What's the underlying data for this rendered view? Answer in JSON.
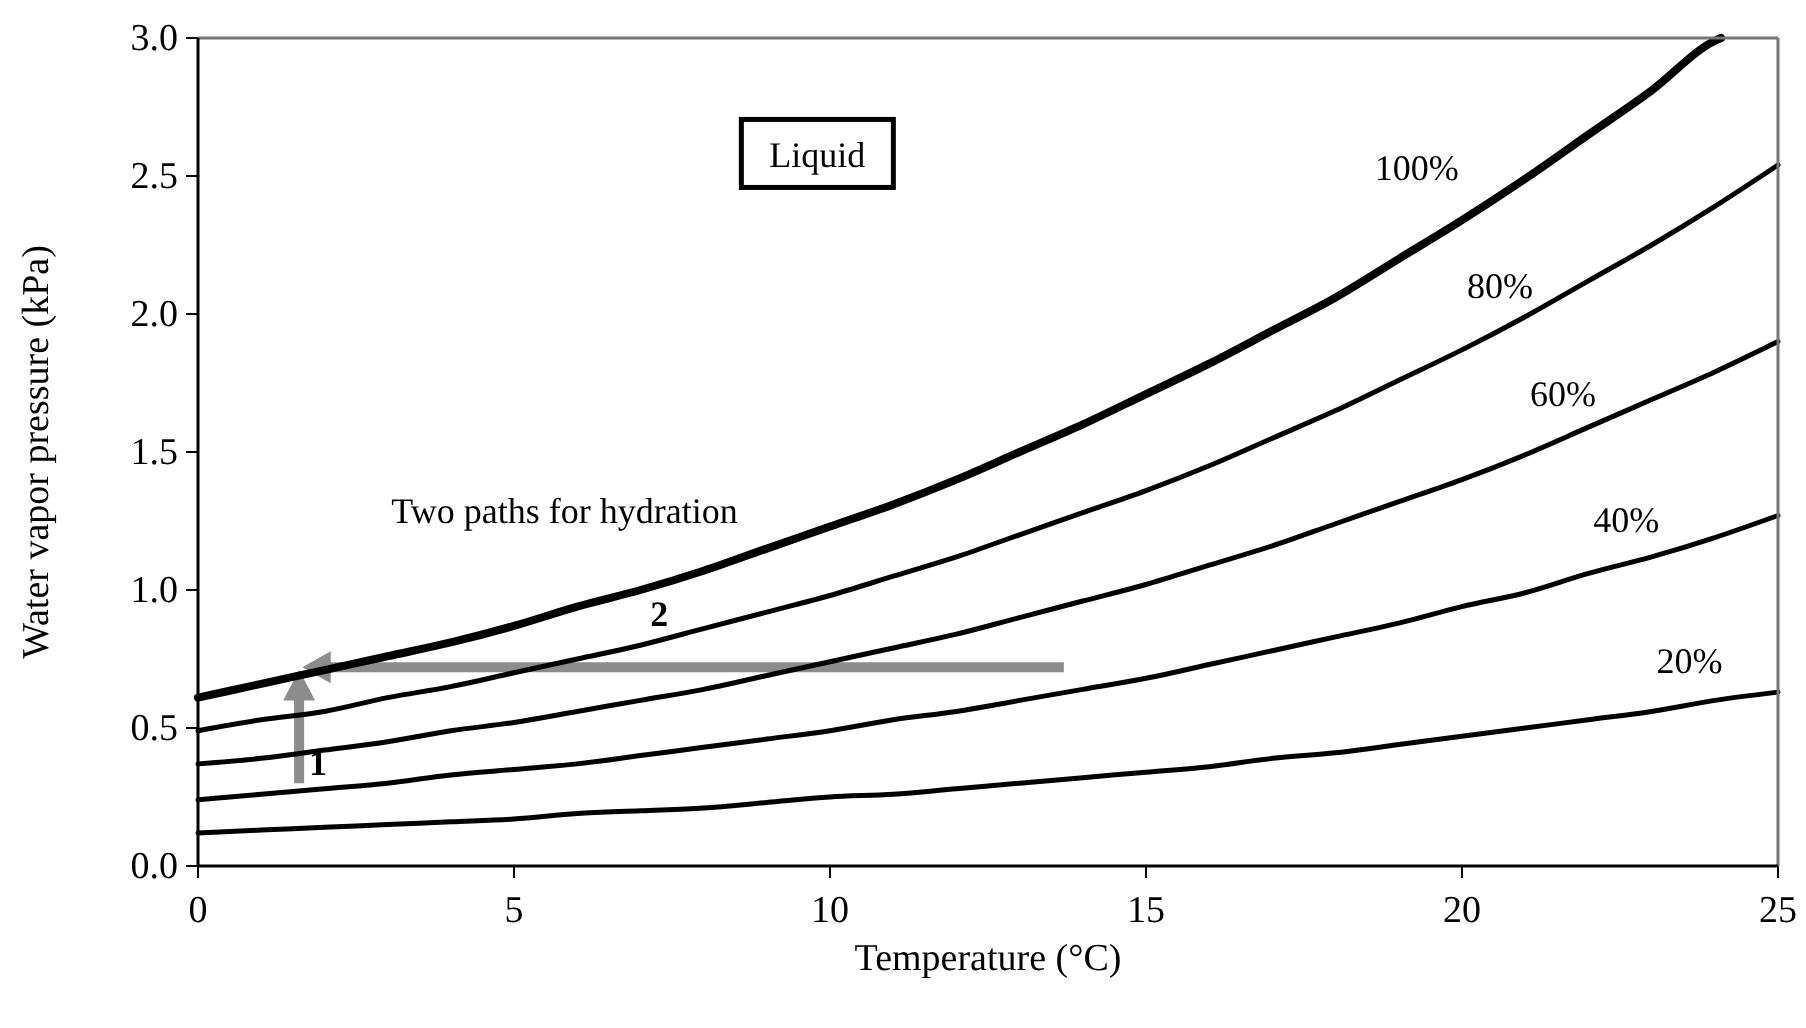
{
  "chart_data": {
    "type": "line",
    "xlabel": "Temperature (°C)",
    "ylabel": "Water vapor pressure (kPa)",
    "x": [
      0,
      1,
      2,
      3,
      4,
      5,
      6,
      7,
      8,
      9,
      10,
      11,
      12,
      13,
      14,
      15,
      16,
      17,
      18,
      19,
      20,
      21,
      22,
      23,
      24,
      25
    ],
    "series": [
      {
        "name": "100%",
        "color": "#000000",
        "x": [
          0,
          1,
          2,
          3,
          4,
          5,
          6,
          7,
          8,
          9,
          10,
          11,
          12,
          13,
          14,
          15,
          16,
          17,
          18,
          19,
          20,
          21,
          22,
          23,
          24,
          24.1
        ],
        "values": [
          0.61,
          0.66,
          0.71,
          0.76,
          0.81,
          0.87,
          0.94,
          1.0,
          1.07,
          1.15,
          1.23,
          1.31,
          1.4,
          1.5,
          1.6,
          1.71,
          1.82,
          1.94,
          2.06,
          2.2,
          2.34,
          2.49,
          2.65,
          2.81,
          2.99,
          3.0
        ]
      },
      {
        "name": "80%",
        "color": "#000000",
        "values": [
          0.49,
          0.53,
          0.56,
          0.61,
          0.65,
          0.7,
          0.75,
          0.8,
          0.86,
          0.92,
          0.98,
          1.05,
          1.12,
          1.2,
          1.28,
          1.36,
          1.45,
          1.55,
          1.65,
          1.76,
          1.87,
          1.99,
          2.12,
          2.25,
          2.39,
          2.54
        ]
      },
      {
        "name": "60%",
        "color": "#000000",
        "values": [
          0.37,
          0.39,
          0.42,
          0.45,
          0.49,
          0.52,
          0.56,
          0.6,
          0.64,
          0.69,
          0.74,
          0.79,
          0.84,
          0.9,
          0.96,
          1.02,
          1.09,
          1.16,
          1.24,
          1.32,
          1.4,
          1.49,
          1.59,
          1.69,
          1.79,
          1.9
        ]
      },
      {
        "name": "40%",
        "color": "#000000",
        "values": [
          0.24,
          0.26,
          0.28,
          0.3,
          0.33,
          0.35,
          0.37,
          0.4,
          0.43,
          0.46,
          0.49,
          0.53,
          0.56,
          0.6,
          0.64,
          0.68,
          0.73,
          0.78,
          0.83,
          0.88,
          0.94,
          0.99,
          1.06,
          1.12,
          1.19,
          1.27
        ]
      },
      {
        "name": "20%",
        "color": "#000000",
        "values": [
          0.12,
          0.13,
          0.14,
          0.15,
          0.16,
          0.17,
          0.19,
          0.2,
          0.21,
          0.23,
          0.25,
          0.26,
          0.28,
          0.3,
          0.32,
          0.34,
          0.36,
          0.39,
          0.41,
          0.44,
          0.47,
          0.5,
          0.53,
          0.56,
          0.6,
          0.63
        ]
      }
    ],
    "annotations": [
      "Liquid",
      "Two paths for hydration",
      "1",
      "2"
    ],
    "xlim": [
      0,
      25
    ],
    "xticks": [
      0,
      5,
      10,
      15,
      20,
      25
    ],
    "ylim": [
      0,
      3
    ],
    "yticks": [
      {
        "value": 0,
        "label": "0.0"
      },
      {
        "value": 0.5,
        "label": "0.5"
      },
      {
        "value": 1,
        "label": "1.0"
      },
      {
        "value": 1.5,
        "label": "1.5"
      },
      {
        "value": 2,
        "label": "2.0"
      },
      {
        "value": 2.5,
        "label": "2.5"
      },
      {
        "value": 3,
        "label": "3.0"
      }
    ],
    "grid": false,
    "marker": "none",
    "line_style": "solid"
  }
}
